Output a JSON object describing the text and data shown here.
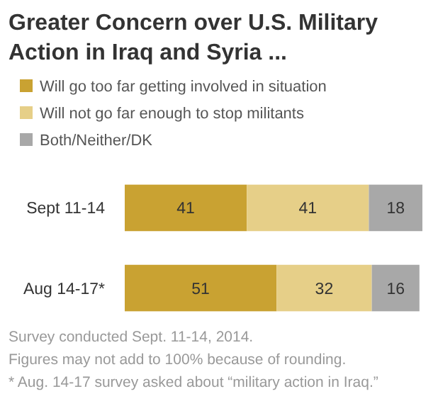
{
  "chart_data": {
    "type": "bar",
    "orientation": "horizontal",
    "stacked": true,
    "title": "Greater Concern over U.S. Military Action in Iraq and Syria ...",
    "categories": [
      "Sept 11-14",
      "Aug 14-17*"
    ],
    "series": [
      {
        "name": "Will go too far getting involved in situation",
        "color": "#c9a232",
        "values": [
          41,
          51
        ]
      },
      {
        "name": "Will not go far enough to stop militants",
        "color": "#e6cf88",
        "values": [
          41,
          32
        ]
      },
      {
        "name": "Both/Neither/DK",
        "color": "#a8a8a8",
        "values": [
          18,
          16
        ]
      }
    ],
    "data_labels": true,
    "legend": "top",
    "annotations": [
      "Survey conducted Sept. 11-14, 2014.",
      "Figures may not add to 100% because of rounding.",
      "* Aug. 14-17 survey asked about “military action in Iraq.”"
    ]
  }
}
